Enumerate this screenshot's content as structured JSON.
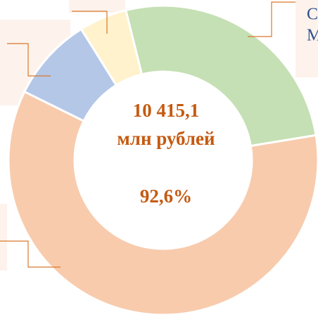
{
  "chart_data": {
    "type": "donut",
    "categories": [
      null,
      null,
      null,
      null
    ],
    "series": [
      {
        "values": [
          26.3,
          59.9,
          8.8,
          5.0
        ],
        "colors": [
          "#c5e0b4",
          "#f8cbad",
          "#b4c7e7",
          "#fff2cc"
        ]
      }
    ],
    "center_text": [
      "10 415,1",
      "млн рублей",
      "92,6%"
    ],
    "annotations": [
      "С",
      "М"
    ]
  }
}
